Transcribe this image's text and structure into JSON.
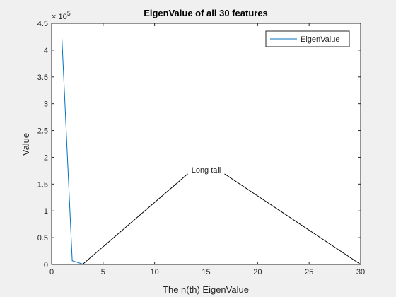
{
  "chart_data": {
    "type": "line",
    "title": "EigenValue of all 30 features",
    "xlabel": "The n(th) EigenValue",
    "ylabel": "Value",
    "xlim": [
      0,
      30
    ],
    "ylim": [
      0,
      450000
    ],
    "x_ticks": [
      0,
      5,
      10,
      15,
      20,
      25,
      30
    ],
    "y_ticks": [
      0,
      50000,
      100000,
      150000,
      200000,
      250000,
      300000,
      350000,
      400000,
      450000
    ],
    "y_tick_labels": [
      "0",
      "0.5",
      "1",
      "1.5",
      "2",
      "2.5",
      "3",
      "3.5",
      "4",
      "4.5"
    ],
    "y_exponent_base": "× 10",
    "y_exponent_power": "5",
    "grid": false,
    "legend": {
      "position": "top-right",
      "entries": [
        "EigenValue"
      ]
    },
    "series": [
      {
        "name": "EigenValue",
        "color": "#0072bd",
        "x": [
          1,
          2,
          3,
          4,
          5,
          6,
          7,
          8,
          9,
          10,
          11,
          12,
          13,
          14,
          15,
          16,
          17,
          18,
          19,
          20,
          21,
          22,
          23,
          24,
          25,
          26,
          27,
          28,
          29,
          30
        ],
        "y": [
          422000,
          7000,
          800,
          300,
          150,
          80,
          50,
          30,
          20,
          15,
          10,
          8,
          6,
          5,
          4,
          3,
          2,
          2,
          1,
          1,
          1,
          1,
          1,
          0,
          0,
          0,
          0,
          0,
          0,
          0
        ]
      }
    ],
    "annotation": {
      "text": "Long tail",
      "anchor": [
        15,
        177000
      ],
      "targets": [
        [
          3,
          0
        ],
        [
          30,
          0
        ]
      ]
    }
  }
}
